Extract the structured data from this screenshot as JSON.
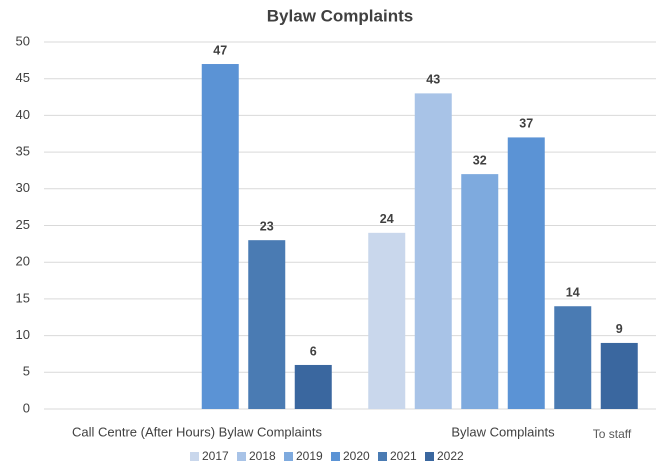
{
  "chart_data": {
    "type": "bar",
    "title": "Bylaw Complaints",
    "categories": [
      "Call Centre (After Hours) Bylaw Complaints",
      "Bylaw Complaints"
    ],
    "annotations": [
      "To staff"
    ],
    "series": [
      {
        "name": "2017",
        "color": "#c9d7ec",
        "values": [
          null,
          24
        ]
      },
      {
        "name": "2018",
        "color": "#a8c3e7",
        "values": [
          null,
          43
        ]
      },
      {
        "name": "2019",
        "color": "#7eaade",
        "values": [
          null,
          32
        ]
      },
      {
        "name": "2020",
        "color": "#5b93d5",
        "values": [
          47,
          37
        ]
      },
      {
        "name": "2021",
        "color": "#4a7bb3",
        "values": [
          23,
          14
        ]
      },
      {
        "name": "2022",
        "color": "#3a679f",
        "values": [
          6,
          9
        ]
      }
    ],
    "ylim": [
      0,
      50
    ],
    "yticks": [
      0,
      5,
      10,
      15,
      20,
      25,
      30,
      35,
      40,
      45,
      50
    ],
    "grid": true,
    "legend": "bottom"
  }
}
